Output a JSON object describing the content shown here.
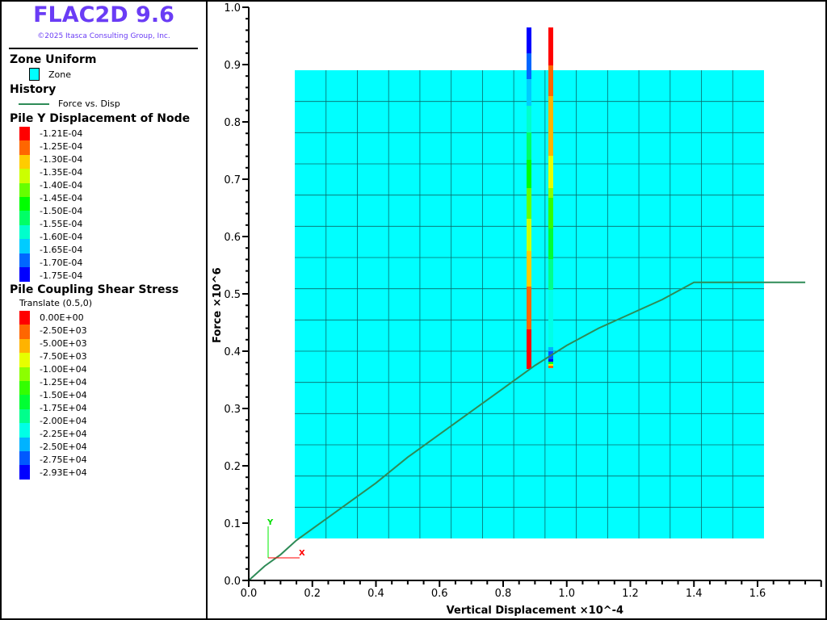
{
  "app": {
    "title": "FLAC2D 9.6",
    "copyright": "©2025 Itasca Consulting Group, Inc."
  },
  "legend": {
    "zone": {
      "heading": "Zone Uniform",
      "item": "Zone",
      "color": "#00ffff"
    },
    "history": {
      "heading": "History",
      "item": "Force vs. Disp",
      "color": "#2e8b57"
    },
    "pile_disp": {
      "heading": "Pile Y Displacement of Node",
      "labels": [
        "-1.21E-04",
        "-1.25E-04",
        "-1.30E-04",
        "-1.35E-04",
        "-1.40E-04",
        "-1.45E-04",
        "-1.50E-04",
        "-1.55E-04",
        "-1.60E-04",
        "-1.65E-04",
        "-1.70E-04",
        "-1.75E-04"
      ],
      "colors": [
        "#ff0000",
        "#ff6600",
        "#ffcc00",
        "#ccff00",
        "#66ff00",
        "#00ff00",
        "#00ff66",
        "#00ffcc",
        "#00ccff",
        "#0066ff",
        "#0000ff"
      ]
    },
    "pile_shear": {
      "heading": "Pile Coupling Shear Stress",
      "subtitle": "Translate (0.5,0)",
      "labels": [
        "0.00E+00",
        "-2.50E+03",
        "-5.00E+03",
        "-7.50E+03",
        "-1.00E+04",
        "-1.25E+04",
        "-1.50E+04",
        "-1.75E+04",
        "-2.00E+04",
        "-2.25E+04",
        "-2.50E+04",
        "-2.75E+04",
        "-2.93E+04"
      ],
      "colors": [
        "#ff0000",
        "#ff6600",
        "#ffb300",
        "#e6ff00",
        "#8cff00",
        "#33ff00",
        "#00ff33",
        "#00ff8c",
        "#00ffe6",
        "#00b3ff",
        "#0059ff",
        "#0000ff"
      ]
    }
  },
  "plot": {
    "xlabel": "Vertical Displacement ×10^-4",
    "ylabel": "Force ×10^6",
    "xlim": [
      0,
      1.8
    ],
    "ylim": [
      0,
      1.0
    ],
    "xticks": [
      "0.0",
      "0.2",
      "0.4",
      "0.6",
      "0.8",
      "1.0",
      "1.2",
      "1.4",
      "1.6"
    ],
    "yticks": [
      "0.0",
      "0.1",
      "0.2",
      "0.3",
      "0.4",
      "0.5",
      "0.6",
      "0.7",
      "0.8",
      "0.9",
      "1.0"
    ],
    "axis_triad": {
      "x": "X",
      "y": "Y"
    },
    "curve": [
      [
        0,
        0
      ],
      [
        0.05,
        0.025
      ],
      [
        0.1,
        0.045
      ],
      [
        0.15,
        0.07
      ],
      [
        0.2,
        0.09
      ],
      [
        0.3,
        0.13
      ],
      [
        0.4,
        0.17
      ],
      [
        0.5,
        0.215
      ],
      [
        0.6,
        0.255
      ],
      [
        0.7,
        0.295
      ],
      [
        0.8,
        0.335
      ],
      [
        0.9,
        0.375
      ],
      [
        1.0,
        0.41
      ],
      [
        1.1,
        0.44
      ],
      [
        1.2,
        0.465
      ],
      [
        1.3,
        0.49
      ],
      [
        1.4,
        0.52
      ],
      [
        1.75,
        0.52
      ]
    ]
  }
}
